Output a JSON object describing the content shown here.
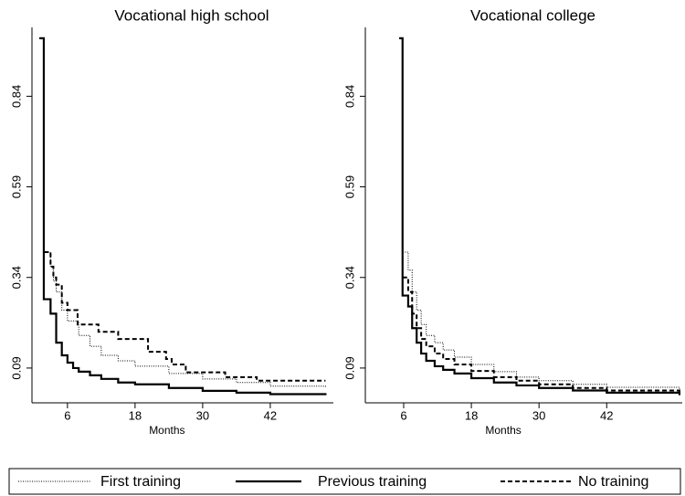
{
  "chart_data": [
    {
      "type": "step",
      "title": "Vocational high school",
      "xlabel": "Months",
      "xlim": [
        -0.3,
        53.2
      ],
      "xticks": [
        6,
        18,
        30,
        42
      ],
      "ylim": [
        -0.006,
        1.03
      ],
      "yticks": [
        0.09,
        0.34,
        0.59,
        0.84
      ],
      "series": [
        {
          "name": "First training",
          "color": "#000000",
          "dash": "dotted",
          "x": [
            1.8,
            3,
            3.5,
            4,
            5,
            6,
            8,
            10,
            12,
            15,
            18,
            24,
            30,
            36,
            42,
            51.8
          ],
          "values": [
            0.41,
            0.37,
            0.33,
            0.3,
            0.25,
            0.22,
            0.18,
            0.15,
            0.125,
            0.11,
            0.095,
            0.075,
            0.06,
            0.05,
            0.04,
            0.035
          ]
        },
        {
          "name": "Previous training",
          "color": "#000000",
          "dash": "solid",
          "x": [
            1,
            1.8,
            3,
            4,
            5,
            6,
            7,
            8,
            10,
            12,
            15,
            18,
            24,
            30,
            36,
            42,
            51.8
          ],
          "values": [
            1.0,
            0.28,
            0.24,
            0.16,
            0.125,
            0.105,
            0.09,
            0.08,
            0.07,
            0.06,
            0.05,
            0.045,
            0.035,
            0.027,
            0.022,
            0.018,
            0.015
          ]
        },
        {
          "name": "No training",
          "color": "#000000",
          "dash": "dashed",
          "x": [
            1.8,
            3,
            3.5,
            4,
            5,
            6,
            7.8,
            11.5,
            15,
            20.3,
            23.5,
            24.5,
            27,
            34,
            39.6,
            51.8
          ],
          "values": [
            0.41,
            0.37,
            0.34,
            0.32,
            0.27,
            0.25,
            0.21,
            0.19,
            0.17,
            0.135,
            0.115,
            0.1,
            0.078,
            0.065,
            0.055,
            0.055
          ]
        }
      ]
    },
    {
      "type": "step",
      "title": "Vocational college",
      "xlabel": "Months",
      "xlim": [
        -0.8,
        55.4
      ],
      "xticks": [
        6,
        18,
        30,
        42
      ],
      "ylim": [
        -0.006,
        1.03
      ],
      "yticks": [
        0.09,
        0.34,
        0.59,
        0.84
      ],
      "series": [
        {
          "name": "First training",
          "color": "#000000",
          "dash": "dotted",
          "x": [
            5.8,
            6.8,
            7.5,
            8.3,
            9.1,
            10,
            11.5,
            13,
            15,
            18,
            22,
            26,
            30,
            36,
            42,
            54.9
          ],
          "values": [
            0.41,
            0.36,
            0.3,
            0.25,
            0.21,
            0.18,
            0.16,
            0.14,
            0.12,
            0.1,
            0.08,
            0.065,
            0.055,
            0.045,
            0.037,
            0.032
          ]
        },
        {
          "name": "Previous training",
          "color": "#000000",
          "dash": "solid",
          "x": [
            5.2,
            5.8,
            6.8,
            7.5,
            8.3,
            9.1,
            10,
            11.5,
            13,
            15,
            18,
            22,
            26,
            30,
            36,
            42,
            54.9
          ],
          "values": [
            1.0,
            0.29,
            0.26,
            0.2,
            0.16,
            0.13,
            0.11,
            0.095,
            0.085,
            0.075,
            0.062,
            0.05,
            0.042,
            0.035,
            0.028,
            0.022,
            0.015
          ]
        },
        {
          "name": "No training",
          "color": "#000000",
          "dash": "dashed",
          "x": [
            5.8,
            6.8,
            7.5,
            8.3,
            9.1,
            10,
            11.5,
            13,
            15,
            18,
            22,
            26,
            30,
            36,
            42,
            54.9
          ],
          "values": [
            0.34,
            0.3,
            0.24,
            0.2,
            0.17,
            0.15,
            0.13,
            0.115,
            0.1,
            0.082,
            0.065,
            0.055,
            0.045,
            0.035,
            0.028,
            0.022
          ]
        }
      ]
    }
  ]
}
